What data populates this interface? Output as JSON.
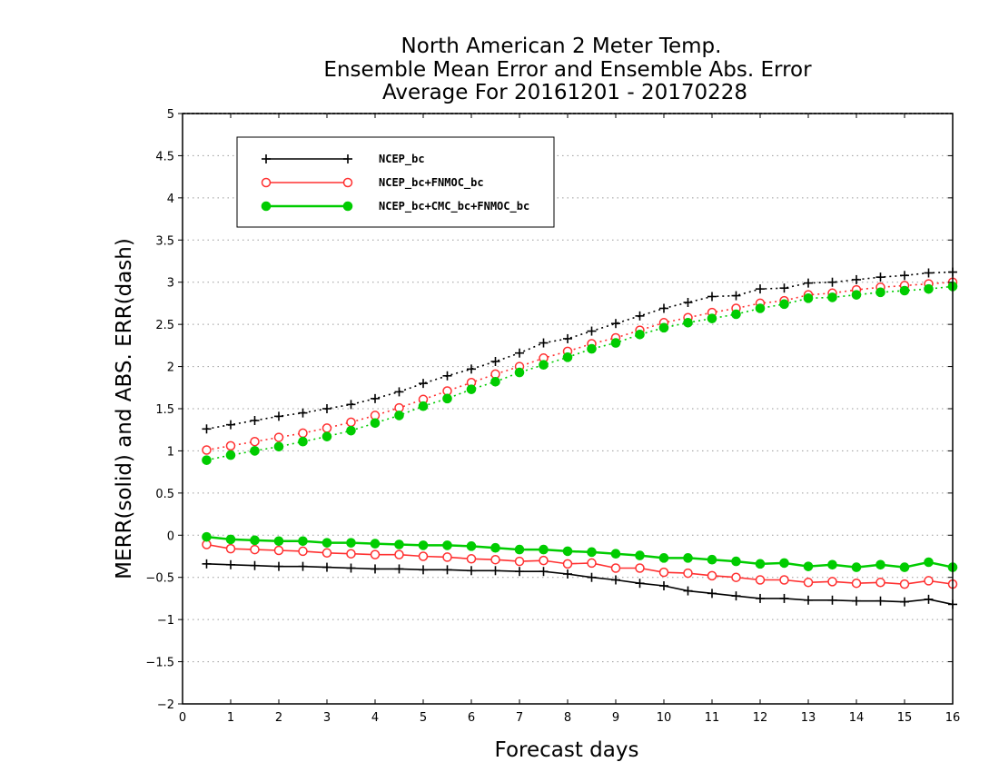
{
  "chart_data": {
    "type": "line",
    "title_lines": [
      "North American 2 Meter Temp.",
      "Ensemble Mean Error and Ensemble Abs. Error",
      "Average For 20161201 - 20170228"
    ],
    "xlabel": "Forecast days",
    "ylabel": "MERR(solid) and ABS. ERR(dash)",
    "xlim": [
      0,
      16
    ],
    "ylim": [
      -2,
      5
    ],
    "xticks": [
      0,
      1,
      2,
      3,
      4,
      5,
      6,
      7,
      8,
      9,
      10,
      11,
      12,
      13,
      14,
      15,
      16
    ],
    "yticks": [
      -2,
      -1.5,
      -1,
      -0.5,
      0,
      0.5,
      1,
      1.5,
      2,
      2.5,
      3,
      3.5,
      4,
      4.5,
      5
    ],
    "ytick_labels": [
      "−2",
      "−1.5",
      "−1",
      "−0.5",
      "0",
      "0.5",
      "1",
      "1.5",
      "2",
      "2.5",
      "3",
      "3.5",
      "4",
      "4.5",
      "5"
    ],
    "grid": "horizontal-dotted",
    "legend_position": "top-left",
    "x": [
      0.5,
      1,
      1.5,
      2,
      2.5,
      3,
      3.5,
      4,
      4.5,
      5,
      5.5,
      6,
      6.5,
      7,
      7.5,
      8,
      8.5,
      9,
      9.5,
      10,
      10.5,
      11,
      11.5,
      12,
      12.5,
      13,
      13.5,
      14,
      14.5,
      15,
      15.5,
      16
    ],
    "series": [
      {
        "name": "NCEP_bc",
        "color": "#000000",
        "marker": "plus",
        "merr": [
          -0.34,
          -0.35,
          -0.36,
          -0.37,
          -0.37,
          -0.38,
          -0.39,
          -0.4,
          -0.4,
          -0.41,
          -0.41,
          -0.42,
          -0.42,
          -0.43,
          -0.43,
          -0.46,
          -0.5,
          -0.53,
          -0.57,
          -0.6,
          -0.66,
          -0.69,
          -0.72,
          -0.75,
          -0.75,
          -0.77,
          -0.77,
          -0.78,
          -0.78,
          -0.79,
          -0.76,
          -0.82
        ],
        "abs_err": [
          1.26,
          1.31,
          1.36,
          1.41,
          1.45,
          1.5,
          1.55,
          1.62,
          1.7,
          1.8,
          1.89,
          1.97,
          2.06,
          2.16,
          2.28,
          2.33,
          2.42,
          2.51,
          2.6,
          2.69,
          2.76,
          2.83,
          2.84,
          2.92,
          2.93,
          2.99,
          3.0,
          3.03,
          3.06,
          3.08,
          3.11,
          3.12
        ]
      },
      {
        "name": "NCEP_bc+FNMOC_bc",
        "color": "#ff3030",
        "marker": "open-circle",
        "merr": [
          -0.11,
          -0.16,
          -0.17,
          -0.18,
          -0.19,
          -0.21,
          -0.22,
          -0.23,
          -0.23,
          -0.25,
          -0.26,
          -0.28,
          -0.29,
          -0.31,
          -0.3,
          -0.34,
          -0.33,
          -0.39,
          -0.39,
          -0.44,
          -0.45,
          -0.48,
          -0.5,
          -0.53,
          -0.53,
          -0.56,
          -0.55,
          -0.57,
          -0.56,
          -0.58,
          -0.54,
          -0.58
        ],
        "abs_err": [
          1.01,
          1.06,
          1.11,
          1.16,
          1.21,
          1.27,
          1.34,
          1.42,
          1.51,
          1.61,
          1.71,
          1.81,
          1.91,
          2.0,
          2.1,
          2.18,
          2.27,
          2.34,
          2.43,
          2.52,
          2.58,
          2.64,
          2.69,
          2.75,
          2.78,
          2.85,
          2.87,
          2.91,
          2.94,
          2.96,
          2.98,
          3.0
        ]
      },
      {
        "name": "NCEP_bc+CMC_bc+FNMOC_bc",
        "color": "#00cc00",
        "marker": "filled-circle",
        "merr": [
          -0.02,
          -0.05,
          -0.06,
          -0.07,
          -0.07,
          -0.09,
          -0.09,
          -0.1,
          -0.11,
          -0.12,
          -0.12,
          -0.13,
          -0.15,
          -0.17,
          -0.17,
          -0.19,
          -0.2,
          -0.22,
          -0.24,
          -0.27,
          -0.27,
          -0.29,
          -0.31,
          -0.34,
          -0.33,
          -0.37,
          -0.35,
          -0.38,
          -0.35,
          -0.38,
          -0.32,
          -0.38
        ],
        "abs_err": [
          0.89,
          0.95,
          1.0,
          1.05,
          1.11,
          1.17,
          1.24,
          1.33,
          1.42,
          1.53,
          1.62,
          1.73,
          1.82,
          1.93,
          2.02,
          2.11,
          2.21,
          2.28,
          2.38,
          2.46,
          2.52,
          2.57,
          2.62,
          2.69,
          2.74,
          2.81,
          2.82,
          2.85,
          2.88,
          2.9,
          2.92,
          2.95
        ]
      }
    ]
  }
}
